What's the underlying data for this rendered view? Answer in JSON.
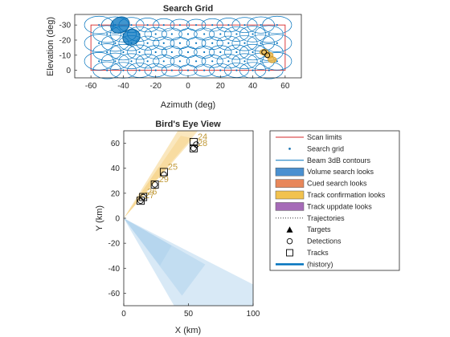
{
  "chart_data": [
    {
      "type": "scatter",
      "title": "Search Grid",
      "xlabel": "Azimuth (deg)",
      "ylabel": "Elevation (deg)",
      "xlim": [
        -70,
        70
      ],
      "ylim": [
        -37,
        5
      ],
      "y_reversed": true,
      "xticks": [
        -60,
        -40,
        -20,
        0,
        20,
        40,
        60
      ],
      "xtick_labels": [
        "-60",
        "-40",
        "-20",
        "0",
        "20",
        "40",
        "60"
      ],
      "yticks": [
        -30,
        -20,
        -10,
        0
      ],
      "ytick_labels": [
        "-30",
        "-20",
        "-10",
        "0"
      ],
      "scan_limits": {
        "az": [
          -60,
          60
        ],
        "el": [
          -30,
          0
        ]
      },
      "grid_rows": [
        {
          "el": -30,
          "az_start": -55,
          "az_step": 10,
          "count": 12
        },
        {
          "el": -24,
          "az_start": -50,
          "az_step": 10,
          "count": 11
        },
        {
          "el": -18,
          "az_start": -55,
          "az_step": 10,
          "count": 12
        },
        {
          "el": -12,
          "az_start": -50,
          "az_step": 10,
          "count": 11
        },
        {
          "el": -6,
          "az_start": -55,
          "az_step": 10,
          "count": 12
        },
        {
          "el": 0,
          "az_start": -50,
          "az_step": 10,
          "count": 11
        }
      ],
      "volume_looks": [
        {
          "az": -42,
          "el": -30,
          "w": 10,
          "h": 8
        },
        {
          "az": -35,
          "el": -22,
          "w": 9,
          "h": 8
        }
      ],
      "track_confirmation_looks": [
        {
          "az": 47,
          "el": -12
        },
        {
          "az": 50,
          "el": -10
        },
        {
          "az": 52,
          "el": -7
        }
      ],
      "detections": [
        {
          "az": 47,
          "el": -12
        },
        {
          "az": 49,
          "el": -10
        }
      ]
    },
    {
      "type": "scatter",
      "title": "Bird's Eye View",
      "xlabel": "X (km)",
      "ylabel": "Y (km)",
      "xlim": [
        0,
        100
      ],
      "ylim": [
        -70,
        70
      ],
      "xticks": [
        0,
        50,
        100
      ],
      "xtick_labels": [
        "0",
        "50",
        "100"
      ],
      "yticks": [
        -60,
        -40,
        -20,
        0,
        20,
        40,
        60
      ],
      "ytick_labels": [
        "-60",
        "-40",
        "-20",
        "0",
        "20",
        "40",
        "60"
      ],
      "volume_wedges": [
        {
          "points": [
            [
              0,
              0
            ],
            [
              100,
              -53
            ],
            [
              100,
              -72
            ],
            [
              40,
              -72
            ]
          ]
        },
        {
          "points": [
            [
              0,
              0
            ],
            [
              63,
              -37
            ],
            [
              45,
              -62
            ]
          ]
        },
        {
          "points": [
            [
              0,
              0
            ],
            [
              37,
              -22
            ],
            [
              28,
              -38
            ]
          ]
        }
      ],
      "track_confirmation_wedges": [
        {
          "points": [
            [
              0,
              0
            ],
            [
              59,
              72
            ],
            [
              43,
              72
            ]
          ]
        },
        {
          "points": [
            [
              0,
              0
            ],
            [
              54,
              64
            ],
            [
              44,
              66
            ]
          ]
        },
        {
          "points": [
            [
              0,
              0
            ],
            [
              34,
              41
            ],
            [
              27,
              41
            ]
          ]
        }
      ],
      "tracks": [
        {
          "x": 13,
          "y": 14,
          "id": "27"
        },
        {
          "x": 15,
          "y": 17,
          "id": "26"
        },
        {
          "x": 24,
          "y": 27,
          "id": "29"
        },
        {
          "x": 31,
          "y": 37,
          "id": "25"
        },
        {
          "x": 54,
          "y": 61,
          "id": "24"
        },
        {
          "x": 54,
          "y": 56,
          "id": "28"
        }
      ],
      "detections": [
        {
          "x": 13,
          "y": 14
        },
        {
          "x": 15,
          "y": 17
        },
        {
          "x": 24,
          "y": 27
        },
        {
          "x": 31,
          "y": 35
        },
        {
          "x": 54,
          "y": 56
        },
        {
          "x": 56,
          "y": 59
        }
      ]
    }
  ],
  "legend": {
    "placement": "right",
    "entries": [
      {
        "label": "Scan limits",
        "style": "line",
        "color": "#d62728"
      },
      {
        "label": "Search grid",
        "style": "dot",
        "color": "#1f77b4"
      },
      {
        "label": "Beam 3dB contours",
        "style": "line",
        "color": "#0072bd"
      },
      {
        "label": "Volume search looks",
        "style": "patch",
        "color": "#4a90d0"
      },
      {
        "label": "Cued search looks",
        "style": "patch",
        "color": "#e8875a"
      },
      {
        "label": "Track confirmation looks",
        "style": "patch",
        "color": "#f2c24e"
      },
      {
        "label": "Track uppdate looks",
        "style": "patch",
        "color": "#a66bb8"
      },
      {
        "label": "Trajectories",
        "style": "dotted",
        "color": "#333333"
      },
      {
        "label": "Targets",
        "style": "triangle",
        "color": "#000000"
      },
      {
        "label": "Detections",
        "style": "circle",
        "color": "#000000"
      },
      {
        "label": "Tracks",
        "style": "square",
        "color": "#000000"
      },
      {
        "label": "(history)",
        "style": "thickline",
        "color": "#0072bd"
      }
    ]
  },
  "colors": {
    "axis": "#262626",
    "grid_line": "#0072bd",
    "scan_limit": "#d62728",
    "volume_fill": "#0072bd",
    "volume_wedge": "#a9cfec",
    "track_conf": "#f0b43c",
    "track_conf_wedge": "#f6d488"
  }
}
